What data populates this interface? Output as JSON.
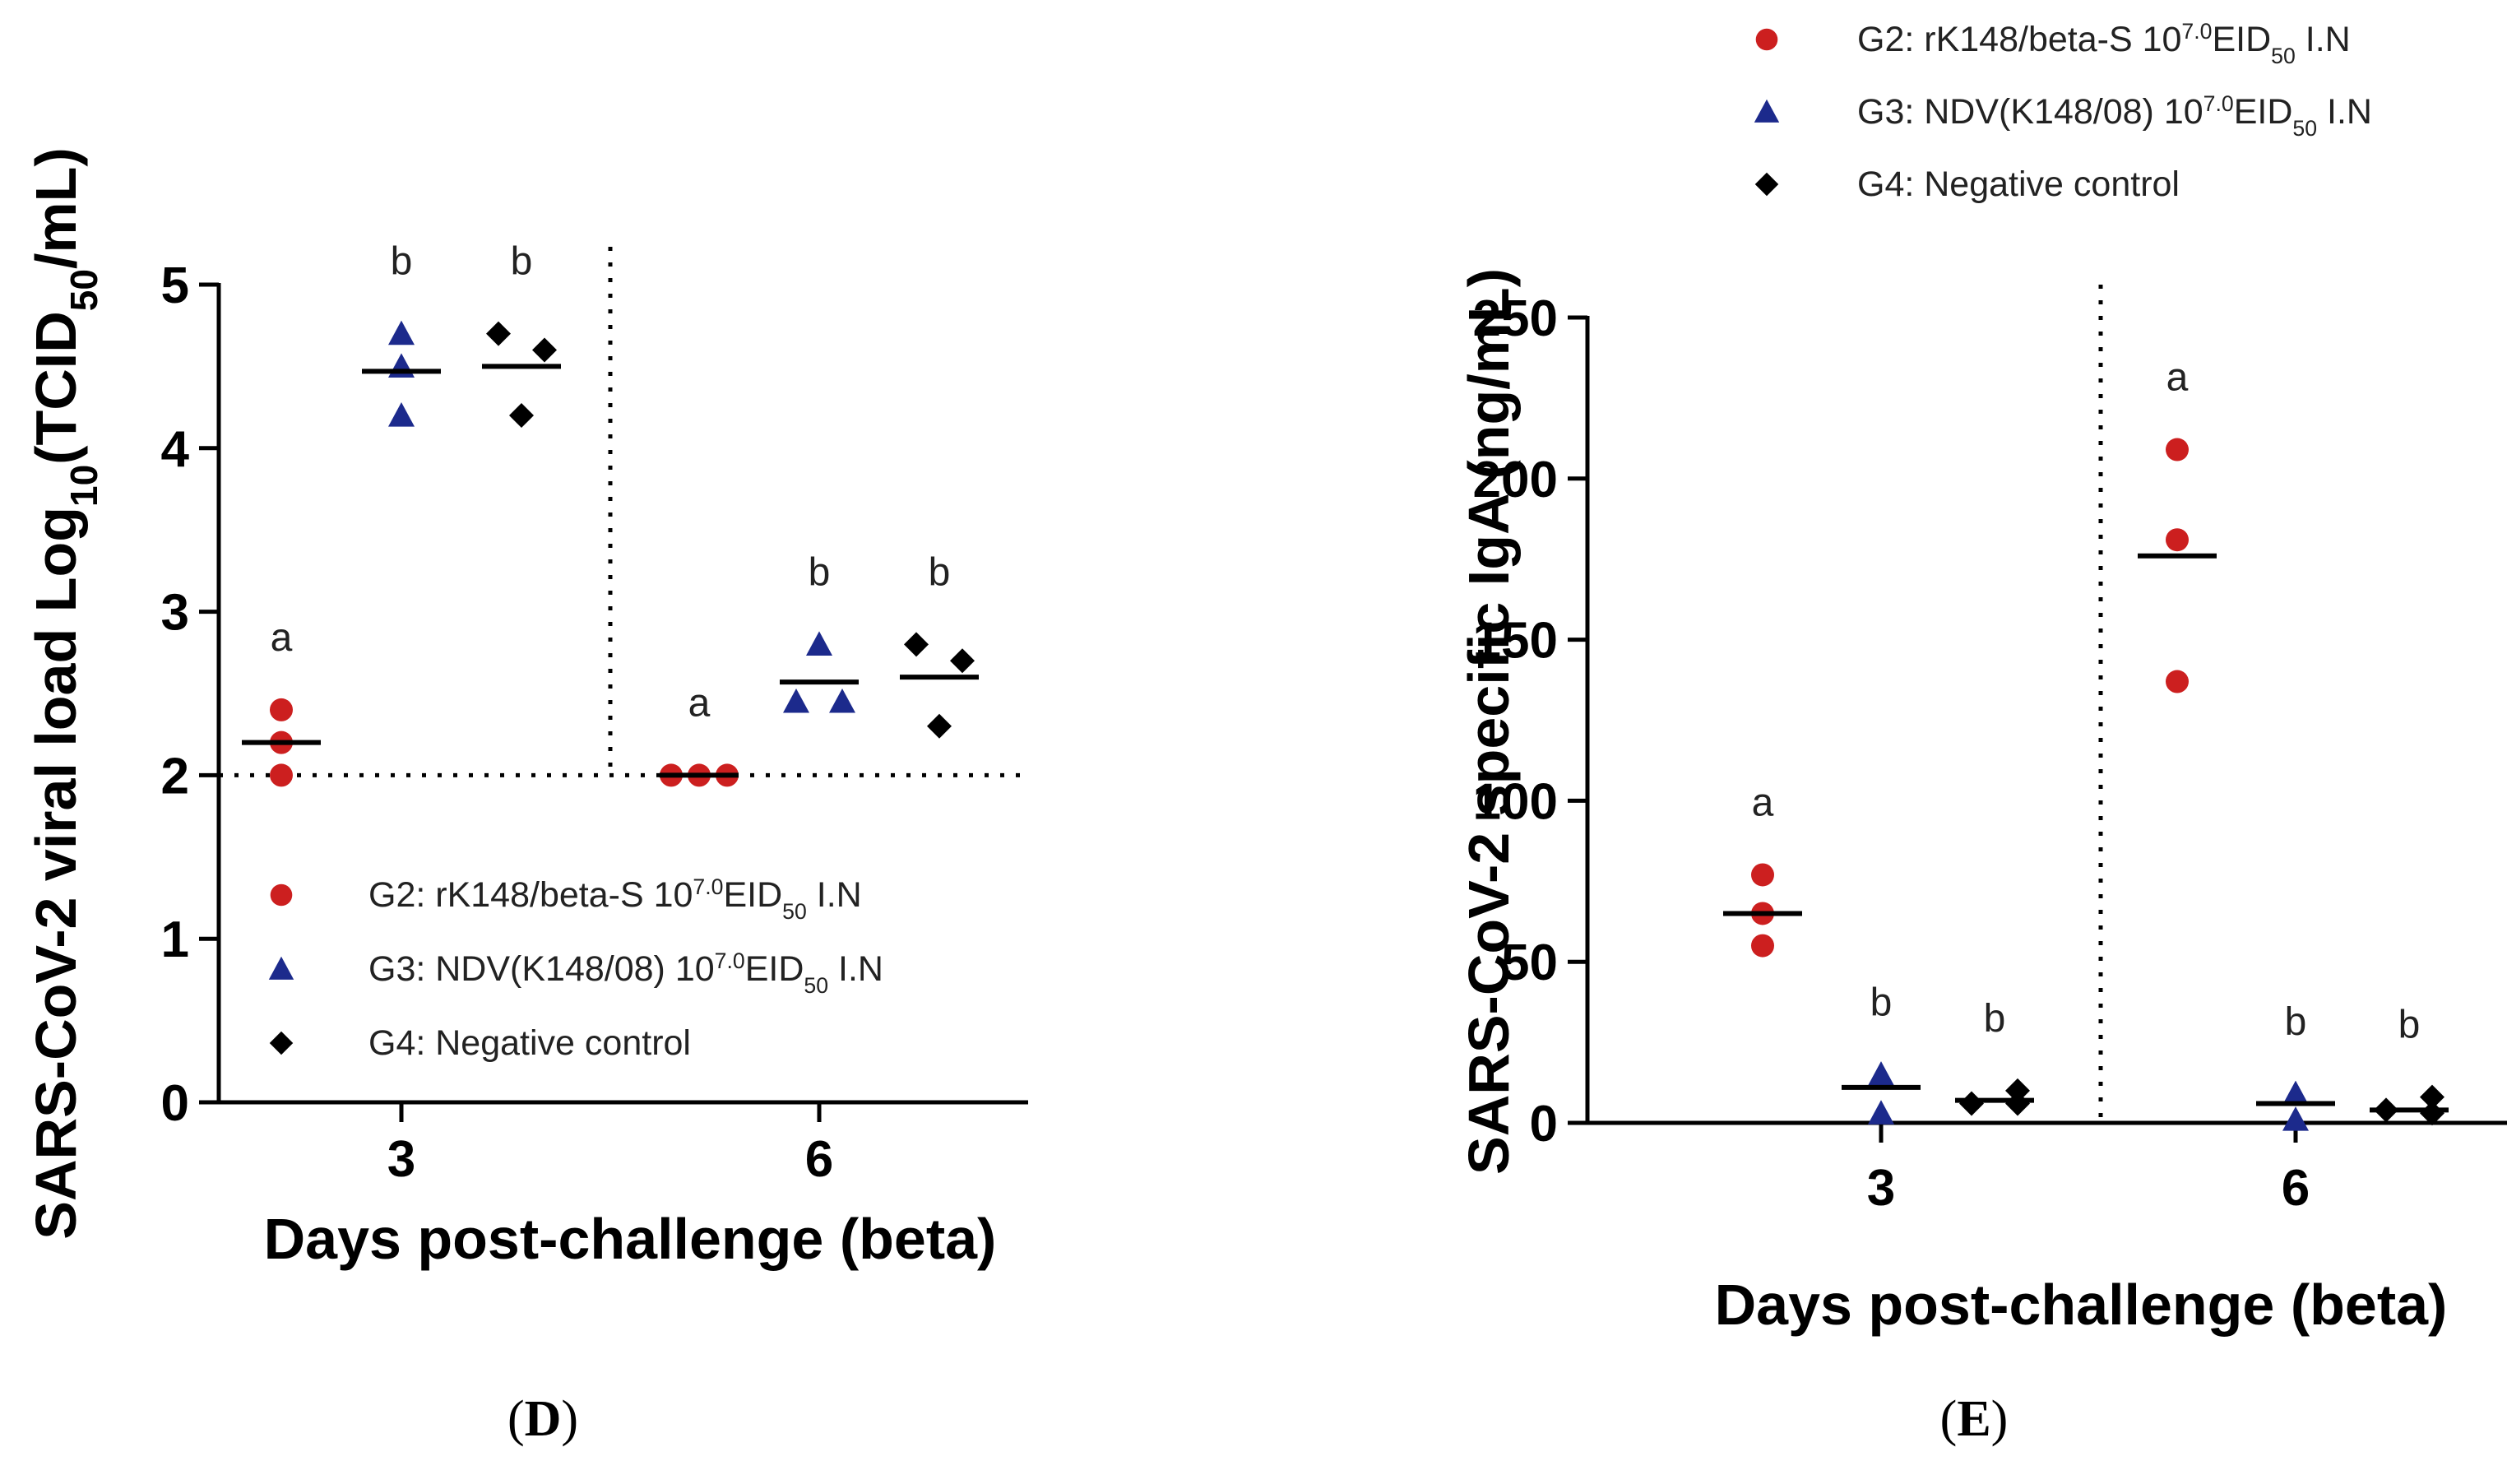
{
  "panels": [
    {
      "panel_label_open": "(",
      "panel_label_letter": "D",
      "panel_label_close": ")"
    },
    {
      "panel_label_open": "(",
      "panel_label_letter": "E",
      "panel_label_close": ")"
    }
  ],
  "chart_data": [
    {
      "type": "scatter",
      "title": "",
      "xlabel": "Days post-challenge (beta)",
      "ylabel_parts": [
        "SARS-CoV-2 viral load Log",
        "10",
        "(TCID",
        "50",
        "/mL)"
      ],
      "ylim": [
        0,
        5
      ],
      "yticks": [
        "0",
        "1",
        "2",
        "3",
        "4",
        "5"
      ],
      "categories": [
        "3",
        "6"
      ],
      "reference_line_y": 2,
      "divider_after_category": "3",
      "legend_position": "lower-right",
      "series": [
        {
          "name": "G2",
          "legend_text": "G2: rK148/beta-S 10",
          "legend_exp": "7.0",
          "legend_mid": "EID",
          "legend_sub": "50",
          "legend_tail": " I.N",
          "marker": "circle",
          "color": "#cc1f1f",
          "values": {
            "3": [
              2.4,
              2.2,
              2.0
            ],
            "6": [
              2.0,
              2.0,
              2.0
            ]
          },
          "means": {
            "3": 2.2,
            "6": 2.0
          },
          "letters": {
            "3": "a",
            "6": "a"
          }
        },
        {
          "name": "G3",
          "legend_text": "G3: NDV(K148/08) 10",
          "legend_exp": "7.0",
          "legend_mid": "EID",
          "legend_sub": "50",
          "legend_tail": " I.N",
          "marker": "triangle",
          "color": "#1c2a8c",
          "values": {
            "3": [
              4.7,
              4.5,
              4.2
            ],
            "6": [
              2.8,
              2.45,
              2.45
            ]
          },
          "means": {
            "3": 4.47,
            "6": 2.57
          },
          "letters": {
            "3": "b",
            "6": "b"
          }
        },
        {
          "name": "G4",
          "legend_text": "G4: Negative control",
          "marker": "diamond",
          "color": "#000000",
          "values": {
            "3": [
              4.7,
              4.6,
              4.2
            ],
            "6": [
              2.8,
              2.7,
              2.3
            ]
          },
          "means": {
            "3": 4.5,
            "6": 2.6
          },
          "letters": {
            "3": "b",
            "6": "b"
          }
        }
      ]
    },
    {
      "type": "scatter",
      "title": "",
      "xlabel": "Days post-challenge (beta)",
      "ylabel": "SARS-CoV-2 specific IgA (ng/mL)",
      "ylim": [
        0,
        250
      ],
      "yticks": [
        "0",
        "50",
        "100",
        "150",
        "200",
        "250"
      ],
      "categories": [
        "3",
        "6"
      ],
      "divider_after_category": "3",
      "legend_position": "top",
      "series": [
        {
          "name": "G2",
          "legend_text": "G2: rK148/beta-S 10",
          "legend_exp": "7.0",
          "legend_mid": "EID",
          "legend_sub": "50",
          "legend_tail": " I.N",
          "marker": "circle",
          "color": "#cc1f1f",
          "values": {
            "3": [
              77,
              65,
              55
            ],
            "6": [
              209,
              181,
              137
            ]
          },
          "means": {
            "3": 65,
            "6": 176
          },
          "letters": {
            "3": "a",
            "6": "a"
          }
        },
        {
          "name": "G3",
          "legend_text": "G3: NDV(K148/08) 10",
          "legend_exp": "7.0",
          "legend_mid": "EID",
          "legend_sub": "50",
          "legend_tail": " I.N",
          "marker": "triangle",
          "color": "#1c2a8c",
          "values": {
            "3": [
              15,
              3,
              15
            ],
            "6": [
              9,
              1,
              9
            ]
          },
          "means": {
            "3": 11,
            "6": 6
          },
          "letters": {
            "3": "b",
            "6": "b"
          }
        },
        {
          "name": "G4",
          "legend_text": "G4: Negative control",
          "marker": "diamond",
          "color": "#000000",
          "values": {
            "3": [
              6,
              10,
              6
            ],
            "6": [
              4,
              8,
              3
            ]
          },
          "means": {
            "3": 7,
            "6": 4
          },
          "letters": {
            "3": "b",
            "6": "b"
          }
        }
      ]
    }
  ]
}
